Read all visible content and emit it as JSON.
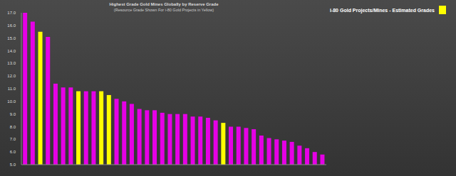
{
  "chart_data": {
    "type": "bar",
    "title": "Highest Grade Gold Mines Globally by Reserve Grade",
    "subtitle": "(Resource Grade Shown For i-80 Gold Projects in Yellow)",
    "categories": [
      null,
      null,
      null,
      null,
      null,
      null,
      null,
      null,
      null,
      null,
      null,
      null,
      null,
      null,
      null,
      null,
      null,
      null,
      null,
      null,
      null,
      null,
      null,
      null,
      null,
      null,
      null,
      null,
      null,
      null,
      null,
      null,
      null,
      null,
      null,
      null,
      null,
      null,
      null,
      null
    ],
    "series": [
      {
        "color": "#e600e6",
        "values": [
          17.0,
          16.3,
          null,
          15.1,
          11.4,
          11.1,
          11.1,
          null,
          10.8,
          10.8,
          null,
          null,
          10.2,
          10.0,
          9.8,
          9.4,
          9.3,
          9.3,
          9.1,
          9.0,
          9.0,
          9.0,
          8.8,
          8.8,
          8.7,
          8.5,
          null,
          8.0,
          8.0,
          7.9,
          7.8,
          7.3,
          7.1,
          7.0,
          6.9,
          6.8,
          6.5,
          6.3,
          6.0,
          5.8
        ]
      },
      {
        "name": "i-80 Gold Projects/Mines - Estimated Grades",
        "color": "#ffff00",
        "values": [
          null,
          null,
          15.5,
          null,
          null,
          null,
          null,
          10.8,
          null,
          null,
          10.8,
          10.5,
          null,
          null,
          null,
          null,
          null,
          null,
          null,
          null,
          null,
          null,
          null,
          null,
          null,
          null,
          8.3,
          null,
          null,
          null,
          null,
          null,
          null,
          null,
          null,
          null,
          null,
          null,
          null,
          null
        ]
      }
    ],
    "stacked": true,
    "ylim": [
      5,
      17
    ],
    "yticks": [
      {
        "value": 5,
        "label": "5.0"
      },
      {
        "value": 6,
        "label": "6.0"
      },
      {
        "value": 7,
        "label": "7.0"
      },
      {
        "value": 8,
        "label": "8.0"
      },
      {
        "value": 9,
        "label": "9.0"
      },
      {
        "value": 10,
        "label": "10.0"
      },
      {
        "value": 11,
        "label": "11.0"
      },
      {
        "value": 12,
        "label": "12.0"
      },
      {
        "value": 13,
        "label": "13.0"
      },
      {
        "value": 14,
        "label": "14.0"
      },
      {
        "value": 15,
        "label": "15.0"
      },
      {
        "value": 16,
        "label": "16.0"
      },
      {
        "value": 17,
        "label": "17.0"
      }
    ],
    "grid": false,
    "legend": "upper right"
  }
}
